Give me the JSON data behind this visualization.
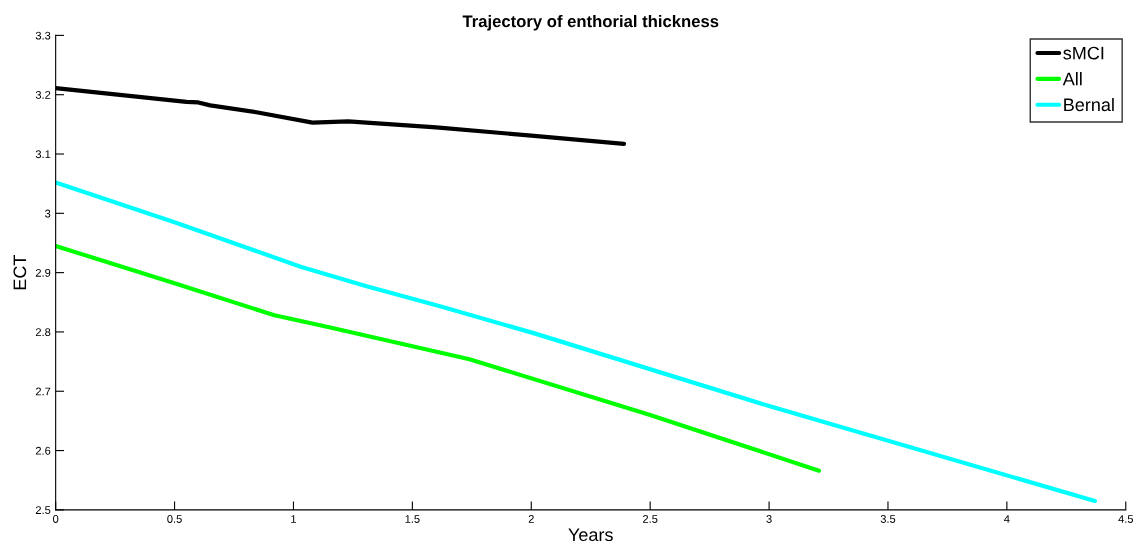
{
  "chart_data": {
    "type": "line",
    "title": "Trajectory of enthorial thickness",
    "xlabel": "Years",
    "ylabel": "ECT",
    "xlim": [
      0,
      4.5
    ],
    "xticks": [
      0,
      0.5,
      1,
      1.5,
      2,
      2.5,
      3,
      3.5,
      4,
      4.5
    ],
    "ylim": [
      2.5,
      3.3
    ],
    "yticks": [
      2.5,
      2.6,
      2.7,
      2.8,
      2.9,
      3,
      3.1,
      3.2,
      3.3
    ],
    "grid": false,
    "legend": "top right",
    "line_style": "solid",
    "marker": "none",
    "series": [
      {
        "name": "sMCI",
        "color": "#000000",
        "x": [
          0,
          0.55,
          0.6,
          0.65,
          0.85,
          1.08,
          1.23,
          1.6,
          2.0,
          2.39
        ],
        "values": [
          3.211,
          3.188,
          3.187,
          3.182,
          3.17,
          3.153,
          3.155,
          3.145,
          3.131,
          3.117
        ]
      },
      {
        "name": "All",
        "color": "#00ff00",
        "x": [
          0,
          0.5,
          0.92,
          1.15,
          1.74,
          2.5,
          3.21
        ],
        "values": [
          2.945,
          2.882,
          2.828,
          2.808,
          2.754,
          2.66,
          2.566
        ]
      },
      {
        "name": "Bernal",
        "color": "#00ffff",
        "x": [
          0,
          0.5,
          1.03,
          1.3,
          1.62,
          2.01,
          3.0,
          4.37
        ],
        "values": [
          3.052,
          2.985,
          2.91,
          2.878,
          2.843,
          2.798,
          2.675,
          2.515
        ]
      }
    ]
  }
}
